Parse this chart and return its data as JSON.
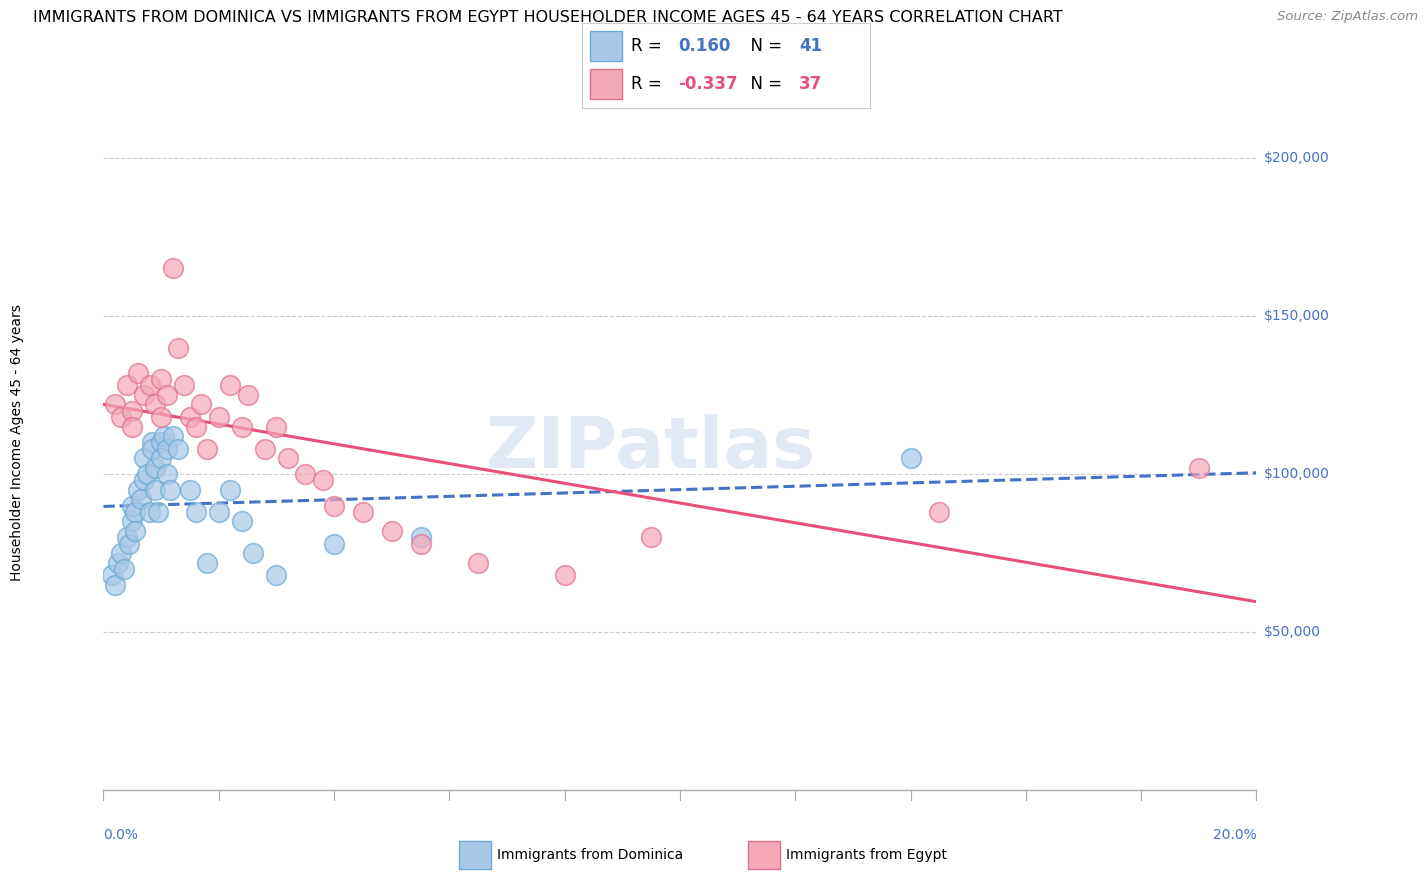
{
  "title": "IMMIGRANTS FROM DOMINICA VS IMMIGRANTS FROM EGYPT HOUSEHOLDER INCOME AGES 45 - 64 YEARS CORRELATION CHART",
  "source": "Source: ZipAtlas.com",
  "ylabel": "Householder Income Ages 45 - 64 years",
  "xlim": [
    0.0,
    20.0
  ],
  "ylim": [
    0,
    220000
  ],
  "dominica_color": "#a8c8e8",
  "dominica_edge": "#6aaad4",
  "egypt_color": "#f4a8b8",
  "egypt_edge": "#e07090",
  "dominica_line_color": "#4472c4",
  "egypt_line_color": "#e8507a",
  "R_dominica": 0.16,
  "N_dominica": 41,
  "R_egypt": -0.337,
  "N_egypt": 37,
  "dominica_x": [
    0.15,
    0.2,
    0.25,
    0.3,
    0.35,
    0.4,
    0.45,
    0.5,
    0.5,
    0.55,
    0.55,
    0.6,
    0.65,
    0.7,
    0.7,
    0.75,
    0.8,
    0.85,
    0.85,
    0.9,
    0.9,
    0.95,
    1.0,
    1.0,
    1.05,
    1.1,
    1.1,
    1.15,
    1.2,
    1.3,
    1.5,
    1.6,
    1.8,
    2.0,
    2.2,
    2.4,
    2.6,
    3.0,
    4.0,
    5.5,
    14.0
  ],
  "dominica_y": [
    68000,
    65000,
    72000,
    75000,
    70000,
    80000,
    78000,
    85000,
    90000,
    88000,
    82000,
    95000,
    92000,
    98000,
    105000,
    100000,
    88000,
    110000,
    108000,
    102000,
    95000,
    88000,
    110000,
    105000,
    112000,
    108000,
    100000,
    95000,
    112000,
    108000,
    95000,
    88000,
    72000,
    88000,
    95000,
    85000,
    75000,
    68000,
    78000,
    80000,
    105000
  ],
  "egypt_x": [
    0.2,
    0.3,
    0.4,
    0.5,
    0.5,
    0.6,
    0.7,
    0.8,
    0.9,
    1.0,
    1.0,
    1.1,
    1.2,
    1.3,
    1.4,
    1.5,
    1.6,
    1.7,
    1.8,
    2.0,
    2.2,
    2.4,
    2.5,
    2.8,
    3.0,
    3.2,
    3.5,
    3.8,
    4.0,
    4.5,
    5.0,
    5.5,
    6.5,
    8.0,
    9.5,
    14.5,
    19.0
  ],
  "egypt_y": [
    122000,
    118000,
    128000,
    120000,
    115000,
    132000,
    125000,
    128000,
    122000,
    118000,
    130000,
    125000,
    165000,
    140000,
    128000,
    118000,
    115000,
    122000,
    108000,
    118000,
    128000,
    115000,
    125000,
    108000,
    115000,
    105000,
    100000,
    98000,
    90000,
    88000,
    82000,
    78000,
    72000,
    68000,
    80000,
    88000,
    102000
  ],
  "watermark": "ZIPatlas",
  "bg_color": "#ffffff",
  "grid_color": "#cccccc",
  "title_fontsize": 11.5,
  "source_fontsize": 9.5,
  "axis_label_fontsize": 10,
  "tick_fontsize": 10,
  "legend_fontsize": 12,
  "ytick_vals": [
    50000,
    100000,
    150000,
    200000
  ],
  "ytick_labels": [
    "$50,000",
    "$100,000",
    "$150,000",
    "$200,000"
  ]
}
